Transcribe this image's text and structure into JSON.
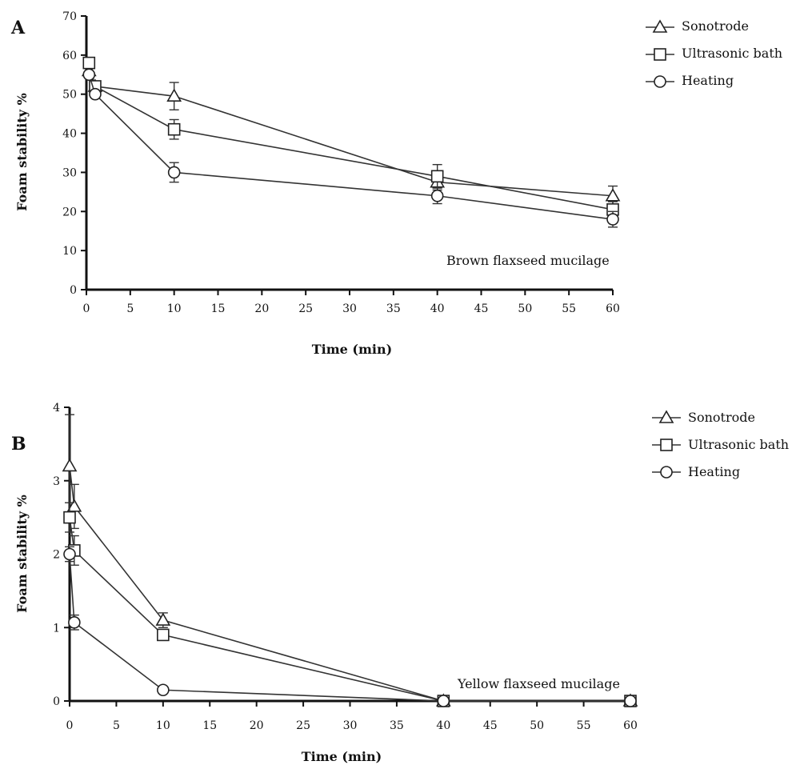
{
  "chart_data": [
    {
      "panel_label": "A",
      "type": "line",
      "xlabel": "Time (min)",
      "ylabel": "Foam stability %",
      "xlim": [
        0,
        60
      ],
      "ylim": [
        0,
        70
      ],
      "xticks": [
        0,
        5,
        10,
        15,
        20,
        25,
        30,
        35,
        40,
        45,
        50,
        55,
        60
      ],
      "yticks": [
        0,
        10,
        20,
        30,
        40,
        50,
        60,
        70
      ],
      "annotation": "Brown flaxseed mucilage",
      "legend_position": "top-right",
      "series": [
        {
          "name": "Sonotrode",
          "marker": "triangle",
          "points": [
            {
              "x": 0.3,
              "y": 56,
              "err": 0
            },
            {
              "x": 1,
              "y": 52,
              "err": 0
            },
            {
              "x": 10,
              "y": 49.5,
              "err": 3.5
            },
            {
              "x": 40,
              "y": 27.5,
              "err": 2
            },
            {
              "x": 60,
              "y": 24,
              "err": 2.5
            }
          ]
        },
        {
          "name": "Ultrasonic bath",
          "marker": "square",
          "points": [
            {
              "x": 0.3,
              "y": 58,
              "err": 0
            },
            {
              "x": 1,
              "y": 52,
              "err": 0
            },
            {
              "x": 10,
              "y": 41,
              "err": 2.5
            },
            {
              "x": 40,
              "y": 29,
              "err": 3
            },
            {
              "x": 60,
              "y": 20.5,
              "err": 2
            }
          ]
        },
        {
          "name": "Heating",
          "marker": "circle",
          "points": [
            {
              "x": 0.3,
              "y": 55,
              "err": 0
            },
            {
              "x": 1,
              "y": 50,
              "err": 0
            },
            {
              "x": 10,
              "y": 30,
              "err": 2.5
            },
            {
              "x": 40,
              "y": 24,
              "err": 2
            },
            {
              "x": 60,
              "y": 18,
              "err": 2
            }
          ]
        }
      ]
    },
    {
      "panel_label": "B",
      "type": "line",
      "xlabel": "Time (min)",
      "ylabel": "Foam stability %",
      "xlim": [
        0,
        60
      ],
      "ylim": [
        0,
        4
      ],
      "xticks": [
        0,
        5,
        10,
        15,
        20,
        25,
        30,
        35,
        40,
        45,
        50,
        55,
        60
      ],
      "yticks": [
        0,
        1,
        2,
        3,
        4
      ],
      "annotation": "Yellow flaxseed mucilage",
      "legend_position": "top-right",
      "series": [
        {
          "name": "Sonotrode",
          "marker": "triangle",
          "points": [
            {
              "x": 0,
              "y": 3.2,
              "err": 0.7
            },
            {
              "x": 0.5,
              "y": 2.65,
              "err": 0.3
            },
            {
              "x": 10,
              "y": 1.1,
              "err": 0.1
            },
            {
              "x": 40,
              "y": 0,
              "err": 0
            },
            {
              "x": 60,
              "y": 0,
              "err": 0
            }
          ]
        },
        {
          "name": "Ultrasonic bath",
          "marker": "square",
          "points": [
            {
              "x": 0,
              "y": 2.5,
              "err": 0.2
            },
            {
              "x": 0.5,
              "y": 2.05,
              "err": 0.2
            },
            {
              "x": 10,
              "y": 0.9,
              "err": 0.05
            },
            {
              "x": 40,
              "y": 0,
              "err": 0
            },
            {
              "x": 60,
              "y": 0,
              "err": 0
            }
          ]
        },
        {
          "name": "Heating",
          "marker": "circle",
          "points": [
            {
              "x": 0,
              "y": 2.0,
              "err": 0.1
            },
            {
              "x": 0.5,
              "y": 1.07,
              "err": 0.1
            },
            {
              "x": 10,
              "y": 0.15,
              "err": 0
            },
            {
              "x": 40,
              "y": 0,
              "err": 0
            },
            {
              "x": 60,
              "y": 0,
              "err": 0
            }
          ]
        }
      ]
    }
  ]
}
